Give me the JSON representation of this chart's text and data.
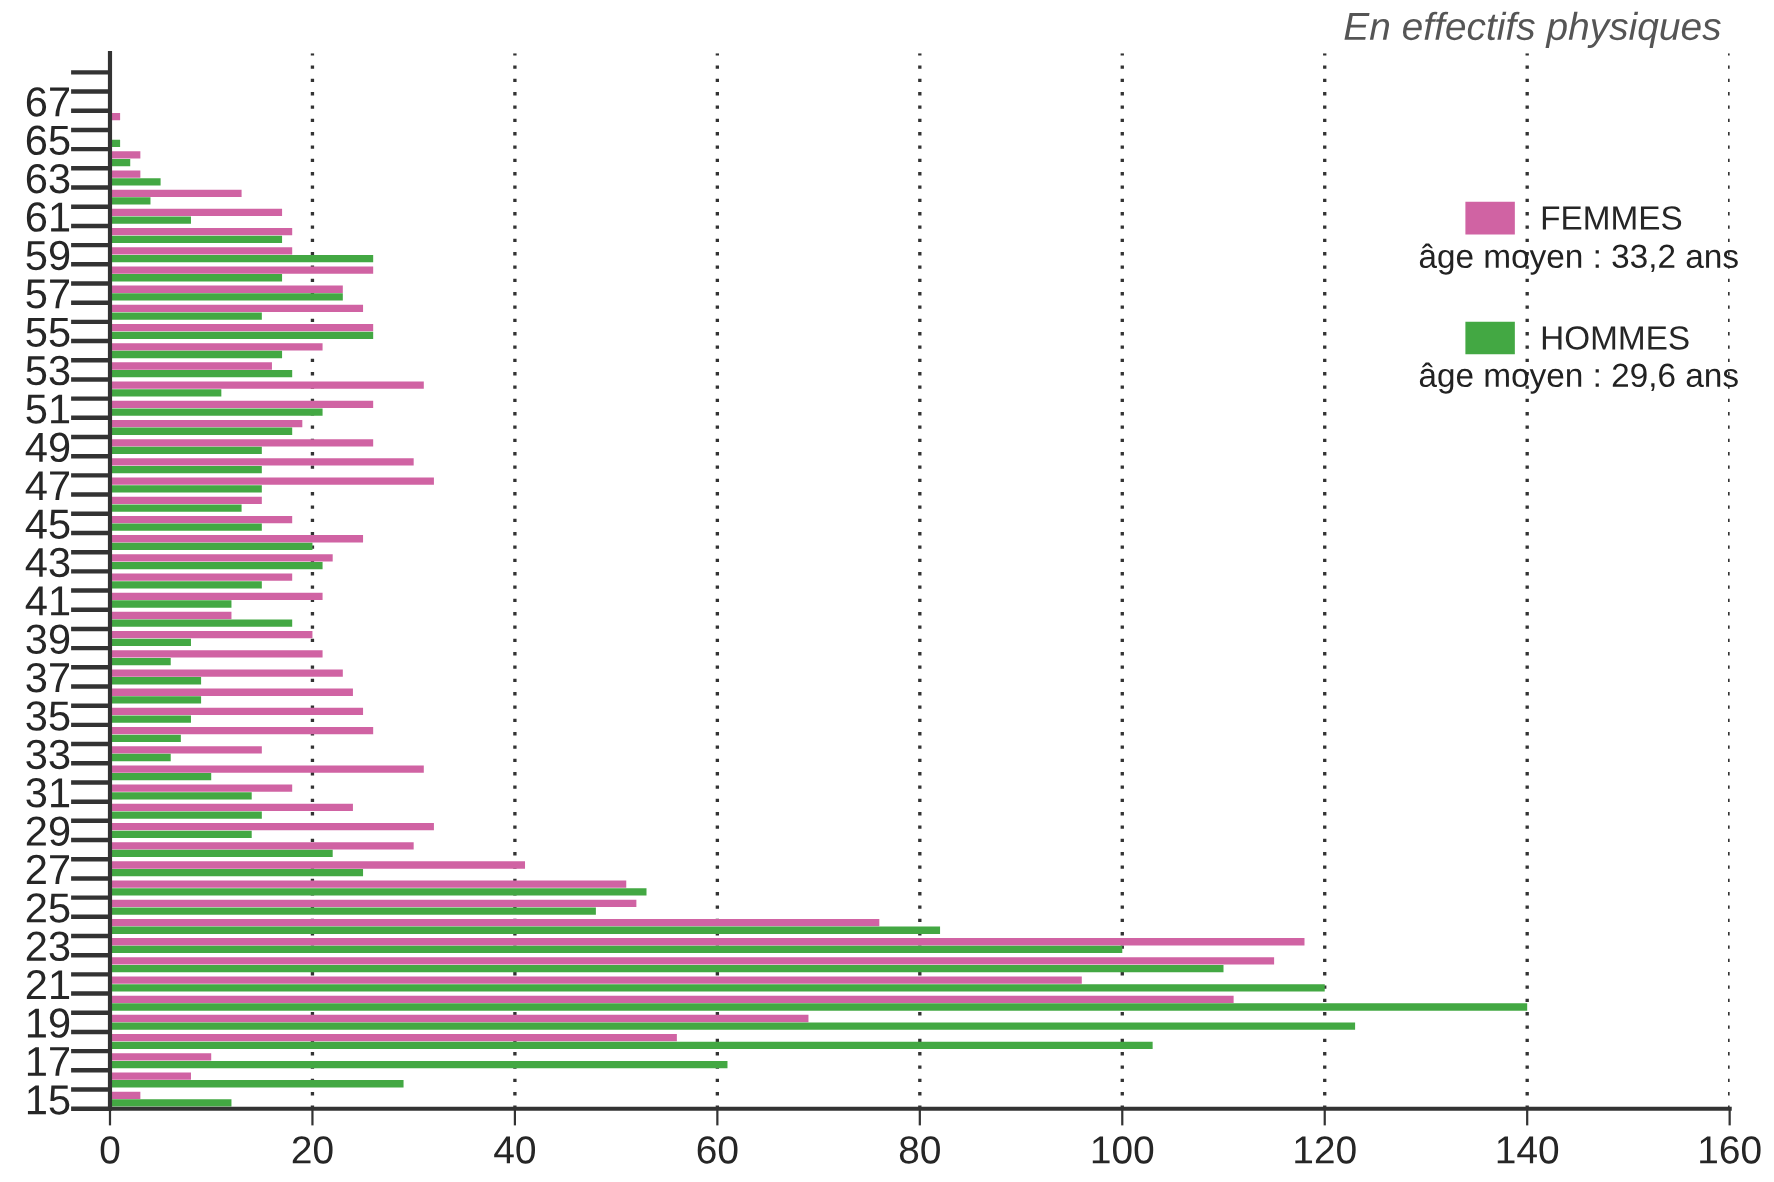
{
  "chart_data": {
    "type": "bar",
    "orientation": "horizontal",
    "title": "En effectifs physiques",
    "categories": [
      null,
      "67",
      null,
      "65",
      null,
      "63",
      null,
      "61",
      null,
      "59",
      null,
      "57",
      null,
      "55",
      null,
      "53",
      null,
      "51",
      null,
      "49",
      null,
      "47",
      null,
      "45",
      null,
      "43",
      null,
      "41",
      null,
      "39",
      null,
      "37",
      null,
      "35",
      null,
      "33",
      null,
      "31",
      null,
      "29",
      null,
      "27",
      null,
      "25",
      null,
      "23",
      null,
      "21",
      null,
      "19",
      null,
      "17",
      null,
      "15"
    ],
    "series": [
      {
        "name": "FEMMES",
        "color": "#d063a3",
        "values": [
          0,
          0,
          1,
          0,
          3,
          3,
          13,
          17,
          18,
          18,
          26,
          23,
          25,
          26,
          21,
          16,
          31,
          26,
          19,
          26,
          30,
          32,
          15,
          18,
          25,
          22,
          18,
          21,
          12,
          20,
          21,
          23,
          24,
          25,
          26,
          15,
          31,
          18,
          24,
          32,
          30,
          41,
          51,
          52,
          76,
          118,
          115,
          96,
          111,
          69,
          56,
          10,
          8,
          3
        ]
      },
      {
        "name": "HOMMES",
        "color": "#43a843",
        "values": [
          0,
          0,
          0,
          1,
          2,
          5,
          4,
          8,
          17,
          26,
          17,
          23,
          15,
          26,
          17,
          18,
          11,
          21,
          18,
          15,
          15,
          15,
          13,
          15,
          20,
          21,
          15,
          12,
          18,
          8,
          6,
          9,
          9,
          8,
          7,
          6,
          10,
          14,
          15,
          14,
          22,
          25,
          53,
          48,
          82,
          100,
          110,
          120,
          140,
          123,
          103,
          61,
          29,
          12
        ]
      }
    ],
    "annotations": [
      "âge moyen : 33,2 ans",
      "âge moyen : 29,6 ans"
    ],
    "xlim": [
      0,
      160
    ],
    "xticks": [
      0,
      20,
      40,
      60,
      80,
      100,
      120,
      140,
      160
    ],
    "grid": "x",
    "legend": "top right"
  }
}
